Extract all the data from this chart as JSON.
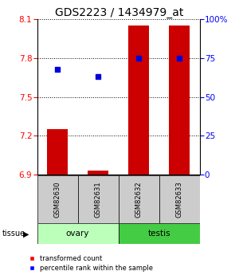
{
  "title": "GDS2223 / 1434979_at",
  "samples": [
    "GSM82630",
    "GSM82631",
    "GSM82632",
    "GSM82633"
  ],
  "transformed_counts": [
    7.25,
    6.93,
    8.05,
    8.05
  ],
  "percentile_ranks": [
    68,
    63,
    75,
    75
  ],
  "baseline": 6.9,
  "ylim_left": [
    6.9,
    8.1
  ],
  "ylim_right": [
    0,
    100
  ],
  "yticks_left": [
    6.9,
    7.2,
    7.5,
    7.8,
    8.1
  ],
  "yticks_right": [
    0,
    25,
    50,
    75,
    100
  ],
  "tissue_groups": [
    {
      "label": "ovary",
      "start": 0,
      "end": 2,
      "color": "#bbffbb"
    },
    {
      "label": "testis",
      "start": 2,
      "end": 4,
      "color": "#44cc44"
    }
  ],
  "bar_color": "#cc0000",
  "dot_color": "#0000dd",
  "bar_width": 0.5,
  "sample_box_color": "#cccccc",
  "title_fontsize": 10,
  "tick_fontsize": 7.5,
  "label_fontsize": 7.5
}
